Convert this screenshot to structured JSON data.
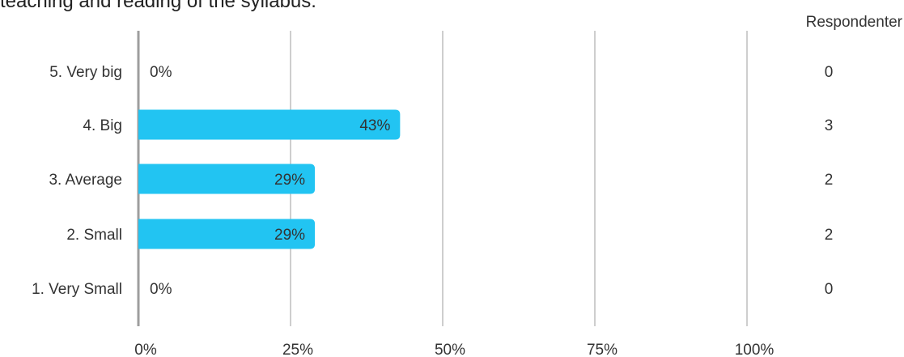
{
  "title": "teaching and reading of the syllabus.",
  "count_header": "Respondenter",
  "colors": {
    "bar": "#22c4f2",
    "grid": "#9e9e9e",
    "axis": "#9e9e9e",
    "text": "#333333"
  },
  "chart_data": {
    "type": "bar",
    "orientation": "horizontal",
    "title": "teaching and reading of the syllabus.",
    "categories": [
      "5. Very big",
      "4. Big",
      "3. Average",
      "2. Small",
      "1. Very Small"
    ],
    "values": [
      0,
      43,
      29,
      29,
      0
    ],
    "value_labels": [
      "0%",
      "43%",
      "29%",
      "29%",
      "0%"
    ],
    "counts": [
      "0",
      "3",
      "2",
      "2",
      "0"
    ],
    "xlim": [
      0,
      100
    ],
    "xticks": [
      0,
      25,
      50,
      75,
      100
    ],
    "xtick_labels": [
      "0%",
      "25%",
      "50%",
      "75%",
      "100%"
    ],
    "grid": true,
    "xlabel": "",
    "ylabel": ""
  }
}
